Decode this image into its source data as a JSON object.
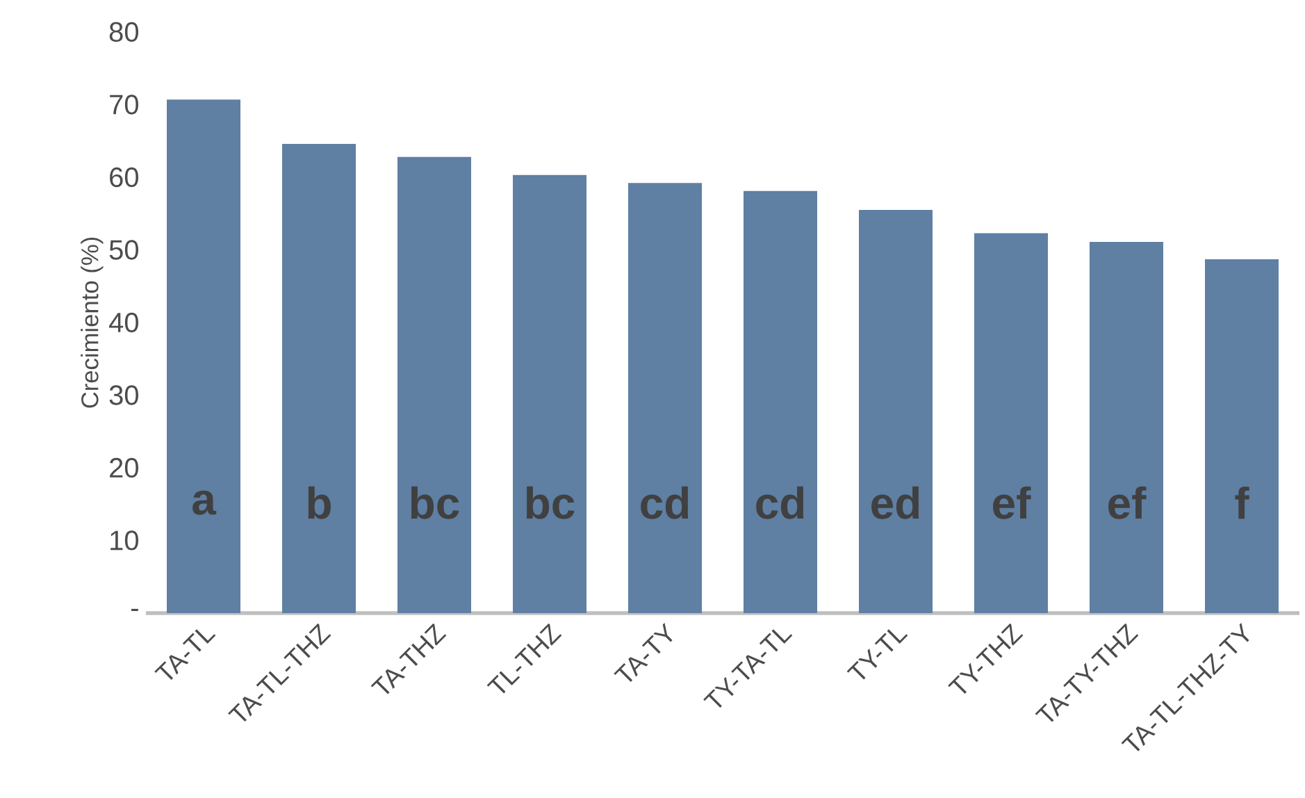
{
  "chart_data": {
    "type": "bar",
    "ylabel": "Crecimiento (%)",
    "categories": [
      "TA-TL",
      "TA-TL-THZ",
      "TA-THZ",
      "TL-THZ",
      "TA-TY",
      "TY-TA-TL",
      "TY-TL",
      "TY-THZ",
      "TA-TY-THZ",
      "TA-TL-THZ-TY"
    ],
    "values": [
      70.7,
      64.6,
      62.8,
      60.3,
      59.2,
      58.1,
      55.5,
      52.3,
      51.1,
      48.7
    ],
    "color": "#5f7fa3",
    "ylim": [
      0,
      80
    ],
    "yticks": [
      {
        "value": 0,
        "label": "-"
      },
      10,
      20,
      30,
      40,
      50,
      60,
      70,
      80
    ],
    "annotations": [
      "a",
      "b",
      "bc",
      "bc",
      "cd",
      "cd",
      "ed",
      "ef",
      "ef",
      "f"
    ]
  }
}
